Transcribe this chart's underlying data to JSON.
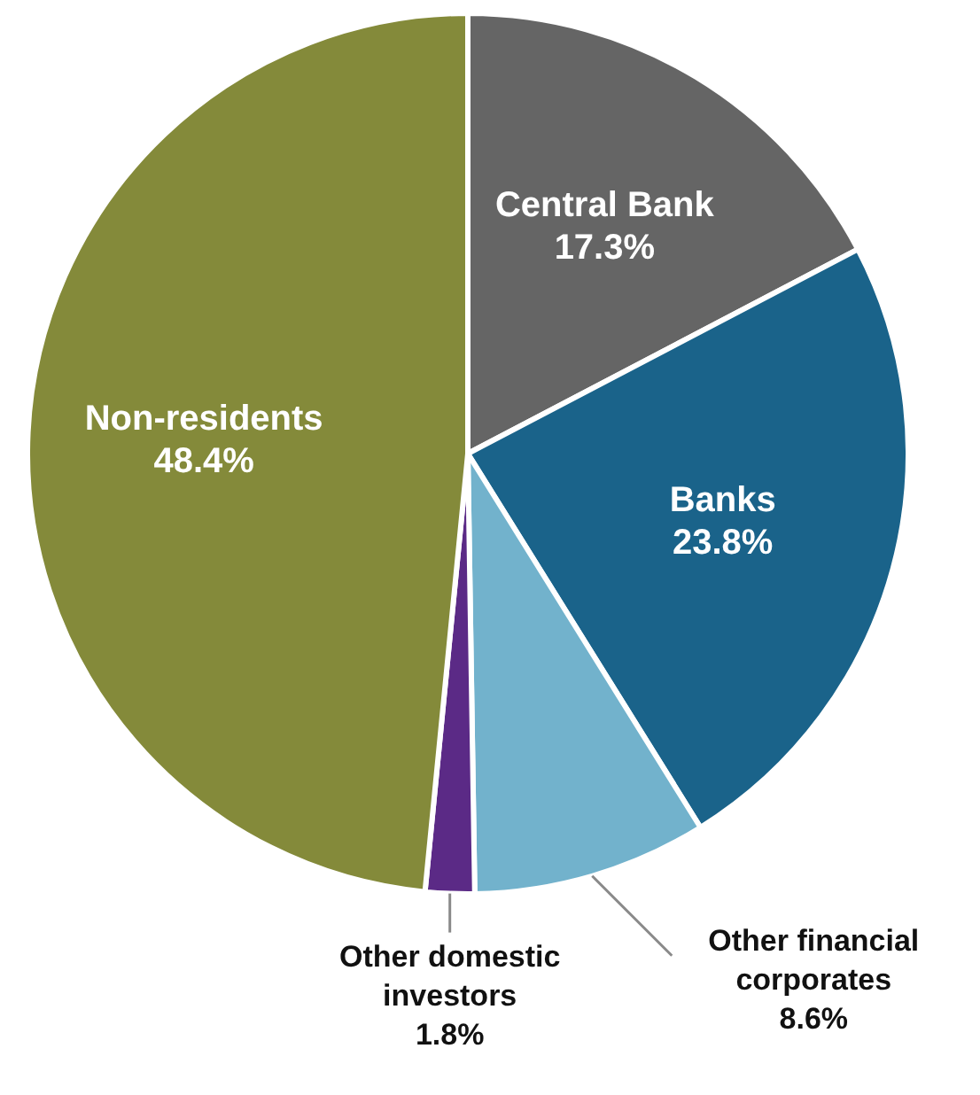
{
  "chart_data": {
    "type": "pie",
    "categories": [
      "Central Bank",
      "Banks",
      "Other financial corporates",
      "Other domestic investors",
      "Non-residents"
    ],
    "values": [
      17.3,
      23.8,
      8.6,
      1.8,
      48.4
    ],
    "colors": [
      "#656565",
      "#1a638a",
      "#72b2cc",
      "#5b2a86",
      "#848a3a"
    ],
    "value_labels": [
      "17.3%",
      "23.8%",
      "8.6%",
      "1.8%",
      "48.4%"
    ],
    "legend": false
  }
}
